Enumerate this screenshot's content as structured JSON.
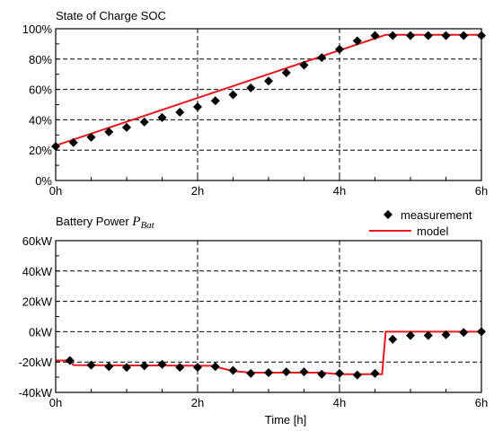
{
  "chart_data": [
    {
      "type": "line",
      "title": "State of Charge SOC",
      "xlabel": "",
      "ylabel": "",
      "xlim": [
        0,
        6
      ],
      "ylim": [
        0,
        100
      ],
      "x_ticks": [
        0,
        2,
        4,
        6
      ],
      "x_tick_labels": [
        "0h",
        "2h",
        "4h",
        "6h"
      ],
      "y_ticks": [
        0,
        20,
        40,
        60,
        80,
        100
      ],
      "y_tick_labels": [
        "0%",
        "20%",
        "40%",
        "60%",
        "80%",
        "100%"
      ],
      "grid": true,
      "colors": {
        "model": "#e8191c",
        "measurement": "#000000"
      },
      "series": [
        {
          "name": "model",
          "x": [
            0,
            4.65,
            6
          ],
          "y": [
            23,
            96,
            96
          ]
        },
        {
          "name": "measurement",
          "x": [
            0,
            0.25,
            0.5,
            0.75,
            1.0,
            1.25,
            1.5,
            1.75,
            2.0,
            2.25,
            2.5,
            2.75,
            3.0,
            3.25,
            3.5,
            3.75,
            4.0,
            4.25,
            4.5,
            4.75,
            5.0,
            5.25,
            5.5,
            5.75,
            6.0
          ],
          "y": [
            22.5,
            25,
            28.5,
            32,
            35,
            38.5,
            41.5,
            45,
            48.5,
            52.5,
            56.5,
            61,
            65.5,
            71,
            76,
            81,
            86.5,
            92,
            95.5,
            95.5,
            95.5,
            95.5,
            95.5,
            95.5,
            95.5
          ]
        }
      ]
    },
    {
      "type": "line",
      "title_prefix": "Battery Power",
      "title_symbol": "P",
      "title_subscript": "Bat",
      "xlabel": "Time [h]",
      "ylabel": "",
      "xlim": [
        0,
        6
      ],
      "ylim": [
        -40,
        60
      ],
      "x_ticks": [
        0,
        2,
        4,
        6
      ],
      "x_tick_labels": [
        "0h",
        "2h",
        "4h",
        "6h"
      ],
      "y_ticks": [
        -40,
        -20,
        0,
        20,
        40,
        60
      ],
      "y_tick_labels": [
        "-40kW",
        "-20kW",
        "0kW",
        "20kW",
        "40kW",
        "60kW"
      ],
      "grid": true,
      "legend": {
        "position": "top-right",
        "items": [
          "measurement",
          "model"
        ]
      },
      "colors": {
        "model": "#e8191c",
        "measurement": "#000000"
      },
      "series": [
        {
          "name": "model",
          "x": [
            0,
            0.2,
            0.25,
            2.2,
            2.25,
            2.5,
            2.75,
            3.75,
            4.0,
            4.6,
            4.65,
            6.0
          ],
          "y": [
            -19,
            -19,
            -22,
            -22.5,
            -23,
            -26,
            -27,
            -27,
            -28,
            -28,
            0,
            0
          ]
        },
        {
          "name": "measurement",
          "x": [
            0.2,
            0.5,
            0.75,
            1.0,
            1.25,
            1.5,
            1.75,
            2.0,
            2.25,
            2.5,
            2.75,
            3.0,
            3.25,
            3.5,
            3.75,
            4.0,
            4.25,
            4.5,
            4.75,
            5.0,
            5.25,
            5.5,
            5.75,
            6.0
          ],
          "y": [
            -19,
            -22,
            -23,
            -23.5,
            -22.5,
            -21.5,
            -23.5,
            -23.5,
            -23,
            -25.5,
            -27.5,
            -27,
            -26.5,
            -26.5,
            -28,
            -27.5,
            -28.5,
            -27.5,
            -5,
            -2.5,
            -2.5,
            -2,
            -0.5,
            0
          ]
        }
      ]
    }
  ]
}
